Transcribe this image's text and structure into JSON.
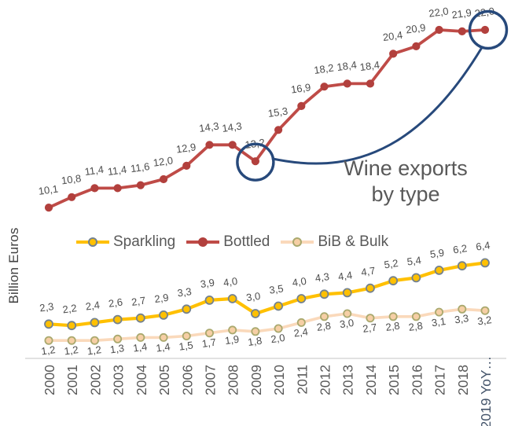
{
  "title": {
    "line1": "Wine exports",
    "line2": "by type"
  },
  "y_axis_label": "Billion Euros",
  "legend": {
    "items": [
      "Sparkling",
      "Bottled",
      "BiB & Bulk"
    ]
  },
  "colors": {
    "annotation": "#27497B",
    "axis_line": "#D9D9D9",
    "value_label_text": "#4D4D4D",
    "year_text": "#595959",
    "year_last_text": "#44546A",
    "title_text": "#595959"
  },
  "chart_data": {
    "type": "line",
    "title": "Wine exports by type",
    "ylabel": "Billion Euros",
    "grid": false,
    "ylim": [
      0,
      24
    ],
    "legend_position": "middle-left",
    "decimal_style": "comma",
    "categories": [
      "2000",
      "2001",
      "2002",
      "2003",
      "2004",
      "2005",
      "2006",
      "2007",
      "2008",
      "2009",
      "2010",
      "2011",
      "2012",
      "2013",
      "2014",
      "2015",
      "2016",
      "2017",
      "2018",
      "2019 YoY…"
    ],
    "series": [
      {
        "name": "Sparkling",
        "color": "#FFC000",
        "marker_fill": "#FFC000",
        "marker_stroke": "#74828F",
        "values": [
          2.3,
          2.2,
          2.4,
          2.6,
          2.7,
          2.9,
          3.3,
          3.9,
          4.0,
          3.0,
          3.5,
          4.0,
          4.3,
          4.4,
          4.7,
          5.2,
          5.4,
          5.9,
          6.2,
          6.4
        ]
      },
      {
        "name": "Bottled",
        "color": "#BF4B47",
        "marker_fill": "#B2403D",
        "marker_stroke": "#B2403D",
        "values": [
          10.1,
          10.8,
          11.4,
          11.4,
          11.6,
          12.0,
          12.9,
          14.3,
          14.3,
          13.2,
          15.3,
          16.9,
          18.2,
          18.4,
          18.4,
          20.4,
          20.9,
          22.0,
          21.9,
          22.0
        ]
      },
      {
        "name": "BiB & Bulk",
        "color": "#FAD9BB",
        "marker_fill": "#F6CFA5",
        "marker_stroke": "#AAA96E",
        "values": [
          1.2,
          1.2,
          1.2,
          1.3,
          1.4,
          1.4,
          1.5,
          1.7,
          1.9,
          1.8,
          2.0,
          2.4,
          2.8,
          3.0,
          2.7,
          2.8,
          2.8,
          3.1,
          3.3,
          3.2
        ]
      }
    ],
    "annotations": {
      "color": "#27497B",
      "circled": [
        {
          "series": "Bottled",
          "category": "2009",
          "value": 13.2
        },
        {
          "series": "Bottled",
          "category": "2019 YoY…",
          "value": 22.0
        }
      ],
      "connector": "curve from 2009 circle to 2019 circle"
    }
  }
}
